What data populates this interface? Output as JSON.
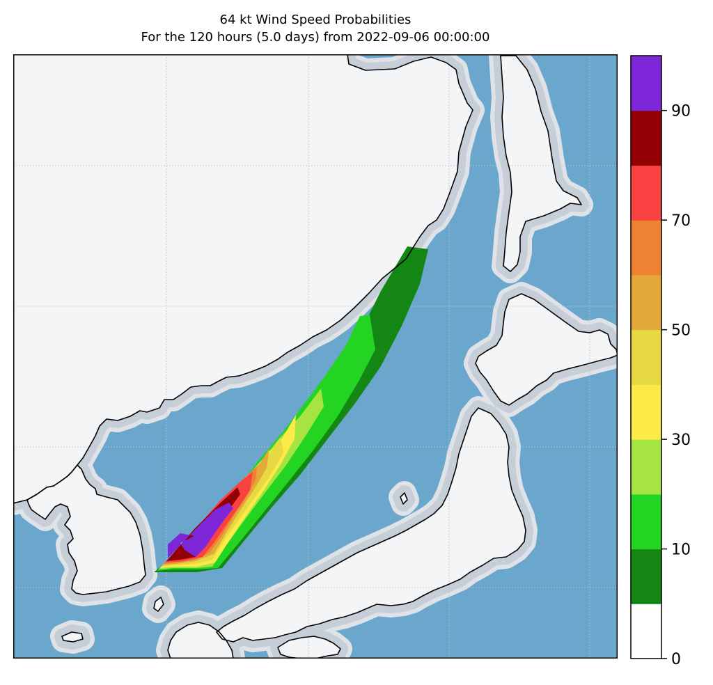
{
  "title": "64 kt Wind Speed Probabilities",
  "subtitle": "For the 120 hours (5.0 days) from 2022-09-06 00:00:00",
  "colors": {
    "ocean": "#6ba6cd",
    "land": "#f4f5f7",
    "coast_halo": [
      "#dfe3e8",
      "#c6ced7",
      "#a9b5c2"
    ],
    "coastline": "#000000",
    "grid": "#bfc6ce"
  },
  "colorbar": {
    "ticks": [
      "0",
      "10",
      "30",
      "50",
      "70",
      "90"
    ],
    "levels": [
      0,
      5,
      10,
      20,
      30,
      40,
      50,
      60,
      70,
      80,
      90,
      100
    ],
    "colors": [
      "#ffffff",
      "#138613",
      "#23d423",
      "#a5e443",
      "#fbea48",
      "#e6d942",
      "#e4aa39",
      "#ee8132",
      "#fa4142",
      "#920003",
      "#7e27d9"
    ]
  },
  "probability_bands": [
    {
      "range": "5-10",
      "color": "#138613"
    },
    {
      "range": "10-20",
      "color": "#23d423"
    },
    {
      "range": "20-30",
      "color": "#a5e443"
    },
    {
      "range": "30-40",
      "color": "#fbea48"
    },
    {
      "range": "40-50",
      "color": "#e6d942"
    },
    {
      "range": "50-60",
      "color": "#e4aa39"
    },
    {
      "range": "60-70",
      "color": "#ee8132"
    },
    {
      "range": "70-80",
      "color": "#fa4142"
    },
    {
      "range": "80-90",
      "color": "#920003"
    },
    {
      "range": "90-100",
      "color": "#7e27d9"
    }
  ]
}
